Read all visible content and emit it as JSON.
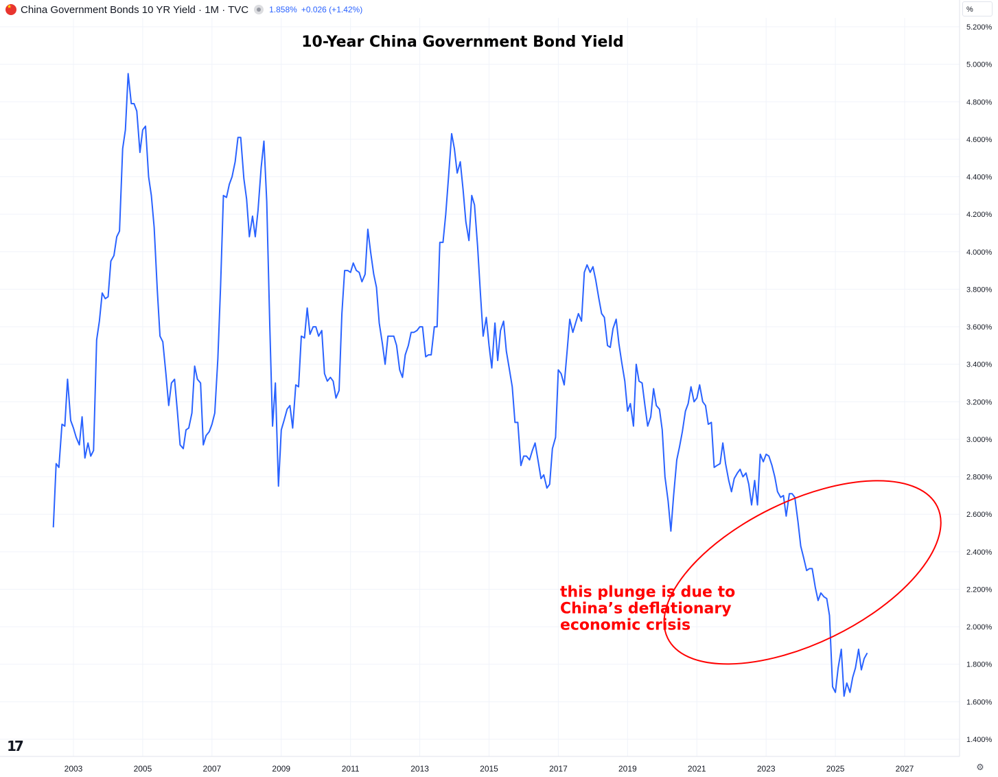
{
  "header": {
    "symbol": "China Government Bonds 10 YR Yield · 1M · TVC",
    "last_value": "1.858%",
    "change": "+0.026 (+1.42%)",
    "unit": "%"
  },
  "chart_data": {
    "type": "line",
    "title": "10-Year China Government Bond Yield",
    "xlabel": "",
    "ylabel": "",
    "ylim": [
      1.3,
      5.25
    ],
    "xlim": [
      2001.6,
      2029.0
    ],
    "y_ticks": [
      "5.200%",
      "5.000%",
      "4.800%",
      "4.600%",
      "4.400%",
      "4.200%",
      "4.000%",
      "3.800%",
      "3.600%",
      "3.400%",
      "3.200%",
      "3.000%",
      "2.800%",
      "2.600%",
      "2.400%",
      "2.200%",
      "2.000%",
      "1.800%",
      "1.600%",
      "1.400%"
    ],
    "x_ticks": [
      "2003",
      "2005",
      "2007",
      "2009",
      "2011",
      "2013",
      "2015",
      "2017",
      "2019",
      "2021",
      "2023",
      "2025",
      "2027"
    ],
    "color": "#2962ff",
    "annotation_color": "#ff0000",
    "annotation": {
      "lines": [
        "this plunge is due to",
        "China’s deflationary",
        "economic crisis"
      ],
      "x": 2017.05,
      "y": 2.16,
      "ellipse": {
        "cx_year": 2024.05,
        "cy": 2.29,
        "rx_years": 2.05,
        "ry": 0.8,
        "angle": -26
      }
    },
    "series": [
      {
        "name": "China Government Bonds 10 YR Yield",
        "points": [
          [
            2002.42,
            2.53
          ],
          [
            2002.5,
            2.87
          ],
          [
            2002.58,
            2.85
          ],
          [
            2002.67,
            3.08
          ],
          [
            2002.75,
            3.07
          ],
          [
            2002.83,
            3.32
          ],
          [
            2002.92,
            3.1
          ],
          [
            2003.0,
            3.06
          ],
          [
            2003.08,
            3.01
          ],
          [
            2003.17,
            2.97
          ],
          [
            2003.25,
            3.12
          ],
          [
            2003.33,
            2.9
          ],
          [
            2003.42,
            2.98
          ],
          [
            2003.5,
            2.91
          ],
          [
            2003.58,
            2.94
          ],
          [
            2003.67,
            3.53
          ],
          [
            2003.75,
            3.63
          ],
          [
            2003.83,
            3.78
          ],
          [
            2003.92,
            3.75
          ],
          [
            2004.0,
            3.76
          ],
          [
            2004.08,
            3.95
          ],
          [
            2004.17,
            3.98
          ],
          [
            2004.25,
            4.08
          ],
          [
            2004.33,
            4.11
          ],
          [
            2004.42,
            4.55
          ],
          [
            2004.5,
            4.65
          ],
          [
            2004.58,
            4.95
          ],
          [
            2004.67,
            4.79
          ],
          [
            2004.75,
            4.79
          ],
          [
            2004.83,
            4.75
          ],
          [
            2004.92,
            4.53
          ],
          [
            2005.0,
            4.65
          ],
          [
            2005.08,
            4.67
          ],
          [
            2005.17,
            4.4
          ],
          [
            2005.25,
            4.3
          ],
          [
            2005.33,
            4.13
          ],
          [
            2005.42,
            3.8
          ],
          [
            2005.5,
            3.55
          ],
          [
            2005.58,
            3.52
          ],
          [
            2005.67,
            3.35
          ],
          [
            2005.75,
            3.18
          ],
          [
            2005.83,
            3.3
          ],
          [
            2005.92,
            3.32
          ],
          [
            2006.0,
            3.15
          ],
          [
            2006.08,
            2.97
          ],
          [
            2006.17,
            2.95
          ],
          [
            2006.25,
            3.05
          ],
          [
            2006.33,
            3.06
          ],
          [
            2006.42,
            3.14
          ],
          [
            2006.5,
            3.39
          ],
          [
            2006.58,
            3.32
          ],
          [
            2006.67,
            3.3
          ],
          [
            2006.75,
            2.97
          ],
          [
            2006.83,
            3.02
          ],
          [
            2006.92,
            3.04
          ],
          [
            2007.0,
            3.08
          ],
          [
            2007.08,
            3.14
          ],
          [
            2007.17,
            3.43
          ],
          [
            2007.25,
            3.82
          ],
          [
            2007.33,
            4.3
          ],
          [
            2007.42,
            4.29
          ],
          [
            2007.5,
            4.36
          ],
          [
            2007.58,
            4.4
          ],
          [
            2007.67,
            4.48
          ],
          [
            2007.75,
            4.61
          ],
          [
            2007.83,
            4.61
          ],
          [
            2007.92,
            4.39
          ],
          [
            2008.0,
            4.28
          ],
          [
            2008.08,
            4.08
          ],
          [
            2008.17,
            4.19
          ],
          [
            2008.25,
            4.08
          ],
          [
            2008.33,
            4.22
          ],
          [
            2008.42,
            4.45
          ],
          [
            2008.5,
            4.59
          ],
          [
            2008.58,
            4.27
          ],
          [
            2008.67,
            3.6
          ],
          [
            2008.75,
            3.07
          ],
          [
            2008.83,
            3.3
          ],
          [
            2008.92,
            2.75
          ],
          [
            2009.0,
            3.05
          ],
          [
            2009.08,
            3.1
          ],
          [
            2009.17,
            3.16
          ],
          [
            2009.25,
            3.18
          ],
          [
            2009.33,
            3.06
          ],
          [
            2009.42,
            3.29
          ],
          [
            2009.5,
            3.28
          ],
          [
            2009.58,
            3.55
          ],
          [
            2009.67,
            3.54
          ],
          [
            2009.75,
            3.7
          ],
          [
            2009.83,
            3.56
          ],
          [
            2009.92,
            3.6
          ],
          [
            2010.0,
            3.6
          ],
          [
            2010.08,
            3.55
          ],
          [
            2010.17,
            3.58
          ],
          [
            2010.25,
            3.35
          ],
          [
            2010.33,
            3.31
          ],
          [
            2010.42,
            3.33
          ],
          [
            2010.5,
            3.31
          ],
          [
            2010.58,
            3.22
          ],
          [
            2010.67,
            3.26
          ],
          [
            2010.75,
            3.67
          ],
          [
            2010.83,
            3.9
          ],
          [
            2010.92,
            3.9
          ],
          [
            2011.0,
            3.89
          ],
          [
            2011.08,
            3.94
          ],
          [
            2011.17,
            3.9
          ],
          [
            2011.25,
            3.89
          ],
          [
            2011.33,
            3.84
          ],
          [
            2011.42,
            3.88
          ],
          [
            2011.5,
            4.12
          ],
          [
            2011.58,
            4.0
          ],
          [
            2011.67,
            3.88
          ],
          [
            2011.75,
            3.81
          ],
          [
            2011.83,
            3.62
          ],
          [
            2011.92,
            3.51
          ],
          [
            2012.0,
            3.4
          ],
          [
            2012.08,
            3.55
          ],
          [
            2012.17,
            3.55
          ],
          [
            2012.25,
            3.55
          ],
          [
            2012.33,
            3.5
          ],
          [
            2012.42,
            3.37
          ],
          [
            2012.5,
            3.33
          ],
          [
            2012.58,
            3.45
          ],
          [
            2012.67,
            3.5
          ],
          [
            2012.75,
            3.57
          ],
          [
            2012.83,
            3.57
          ],
          [
            2012.92,
            3.58
          ],
          [
            2013.0,
            3.6
          ],
          [
            2013.08,
            3.6
          ],
          [
            2013.17,
            3.44
          ],
          [
            2013.25,
            3.45
          ],
          [
            2013.33,
            3.45
          ],
          [
            2013.42,
            3.6
          ],
          [
            2013.5,
            3.6
          ],
          [
            2013.58,
            4.05
          ],
          [
            2013.67,
            4.05
          ],
          [
            2013.75,
            4.2
          ],
          [
            2013.83,
            4.4
          ],
          [
            2013.92,
            4.63
          ],
          [
            2014.0,
            4.55
          ],
          [
            2014.08,
            4.42
          ],
          [
            2014.17,
            4.48
          ],
          [
            2014.25,
            4.33
          ],
          [
            2014.33,
            4.16
          ],
          [
            2014.42,
            4.06
          ],
          [
            2014.5,
            4.3
          ],
          [
            2014.58,
            4.25
          ],
          [
            2014.67,
            4.03
          ],
          [
            2014.75,
            3.78
          ],
          [
            2014.83,
            3.55
          ],
          [
            2014.92,
            3.65
          ],
          [
            2015.0,
            3.5
          ],
          [
            2015.08,
            3.38
          ],
          [
            2015.17,
            3.62
          ],
          [
            2015.25,
            3.42
          ],
          [
            2015.33,
            3.58
          ],
          [
            2015.42,
            3.63
          ],
          [
            2015.5,
            3.47
          ],
          [
            2015.58,
            3.38
          ],
          [
            2015.67,
            3.28
          ],
          [
            2015.75,
            3.09
          ],
          [
            2015.83,
            3.09
          ],
          [
            2015.92,
            2.86
          ],
          [
            2016.0,
            2.91
          ],
          [
            2016.08,
            2.91
          ],
          [
            2016.17,
            2.89
          ],
          [
            2016.25,
            2.94
          ],
          [
            2016.33,
            2.98
          ],
          [
            2016.42,
            2.88
          ],
          [
            2016.5,
            2.79
          ],
          [
            2016.58,
            2.81
          ],
          [
            2016.67,
            2.74
          ],
          [
            2016.75,
            2.76
          ],
          [
            2016.83,
            2.95
          ],
          [
            2016.92,
            3.01
          ],
          [
            2017.0,
            3.37
          ],
          [
            2017.08,
            3.35
          ],
          [
            2017.17,
            3.29
          ],
          [
            2017.25,
            3.46
          ],
          [
            2017.33,
            3.64
          ],
          [
            2017.42,
            3.57
          ],
          [
            2017.5,
            3.62
          ],
          [
            2017.58,
            3.67
          ],
          [
            2017.67,
            3.63
          ],
          [
            2017.75,
            3.89
          ],
          [
            2017.83,
            3.93
          ],
          [
            2017.92,
            3.89
          ],
          [
            2018.0,
            3.92
          ],
          [
            2018.08,
            3.85
          ],
          [
            2018.17,
            3.75
          ],
          [
            2018.25,
            3.67
          ],
          [
            2018.33,
            3.65
          ],
          [
            2018.42,
            3.5
          ],
          [
            2018.5,
            3.49
          ],
          [
            2018.58,
            3.59
          ],
          [
            2018.67,
            3.64
          ],
          [
            2018.75,
            3.51
          ],
          [
            2018.83,
            3.41
          ],
          [
            2018.92,
            3.31
          ],
          [
            2019.0,
            3.15
          ],
          [
            2019.08,
            3.19
          ],
          [
            2019.17,
            3.07
          ],
          [
            2019.25,
            3.4
          ],
          [
            2019.33,
            3.31
          ],
          [
            2019.42,
            3.3
          ],
          [
            2019.5,
            3.18
          ],
          [
            2019.58,
            3.07
          ],
          [
            2019.67,
            3.12
          ],
          [
            2019.75,
            3.27
          ],
          [
            2019.83,
            3.18
          ],
          [
            2019.92,
            3.16
          ],
          [
            2020.0,
            3.05
          ],
          [
            2020.08,
            2.8
          ],
          [
            2020.17,
            2.67
          ],
          [
            2020.25,
            2.51
          ],
          [
            2020.33,
            2.7
          ],
          [
            2020.42,
            2.89
          ],
          [
            2020.5,
            2.96
          ],
          [
            2020.58,
            3.04
          ],
          [
            2020.67,
            3.15
          ],
          [
            2020.75,
            3.19
          ],
          [
            2020.83,
            3.28
          ],
          [
            2020.92,
            3.2
          ],
          [
            2021.0,
            3.22
          ],
          [
            2021.08,
            3.29
          ],
          [
            2021.17,
            3.2
          ],
          [
            2021.25,
            3.18
          ],
          [
            2021.33,
            3.08
          ],
          [
            2021.42,
            3.09
          ],
          [
            2021.5,
            2.85
          ],
          [
            2021.58,
            2.86
          ],
          [
            2021.67,
            2.87
          ],
          [
            2021.75,
            2.98
          ],
          [
            2021.83,
            2.87
          ],
          [
            2021.92,
            2.78
          ],
          [
            2022.0,
            2.72
          ],
          [
            2022.08,
            2.79
          ],
          [
            2022.17,
            2.82
          ],
          [
            2022.25,
            2.84
          ],
          [
            2022.33,
            2.8
          ],
          [
            2022.42,
            2.82
          ],
          [
            2022.5,
            2.76
          ],
          [
            2022.58,
            2.65
          ],
          [
            2022.67,
            2.78
          ],
          [
            2022.75,
            2.65
          ],
          [
            2022.83,
            2.92
          ],
          [
            2022.92,
            2.88
          ],
          [
            2023.0,
            2.92
          ],
          [
            2023.08,
            2.91
          ],
          [
            2023.17,
            2.86
          ],
          [
            2023.25,
            2.8
          ],
          [
            2023.33,
            2.72
          ],
          [
            2023.42,
            2.69
          ],
          [
            2023.5,
            2.7
          ],
          [
            2023.58,
            2.59
          ],
          [
            2023.67,
            2.71
          ],
          [
            2023.75,
            2.71
          ],
          [
            2023.83,
            2.69
          ],
          [
            2023.92,
            2.56
          ],
          [
            2024.0,
            2.43
          ],
          [
            2024.08,
            2.37
          ],
          [
            2024.17,
            2.3
          ],
          [
            2024.25,
            2.31
          ],
          [
            2024.33,
            2.31
          ],
          [
            2024.42,
            2.21
          ],
          [
            2024.5,
            2.14
          ],
          [
            2024.58,
            2.18
          ],
          [
            2024.67,
            2.16
          ],
          [
            2024.75,
            2.15
          ],
          [
            2024.83,
            2.06
          ],
          [
            2024.92,
            1.68
          ],
          [
            2025.0,
            1.65
          ],
          [
            2025.08,
            1.78
          ],
          [
            2025.17,
            1.88
          ],
          [
            2025.25,
            1.63
          ],
          [
            2025.33,
            1.7
          ],
          [
            2025.42,
            1.65
          ],
          [
            2025.5,
            1.73
          ],
          [
            2025.58,
            1.78
          ],
          [
            2025.67,
            1.88
          ],
          [
            2025.75,
            1.77
          ],
          [
            2025.83,
            1.83
          ],
          [
            2025.92,
            1.86
          ]
        ]
      }
    ]
  }
}
